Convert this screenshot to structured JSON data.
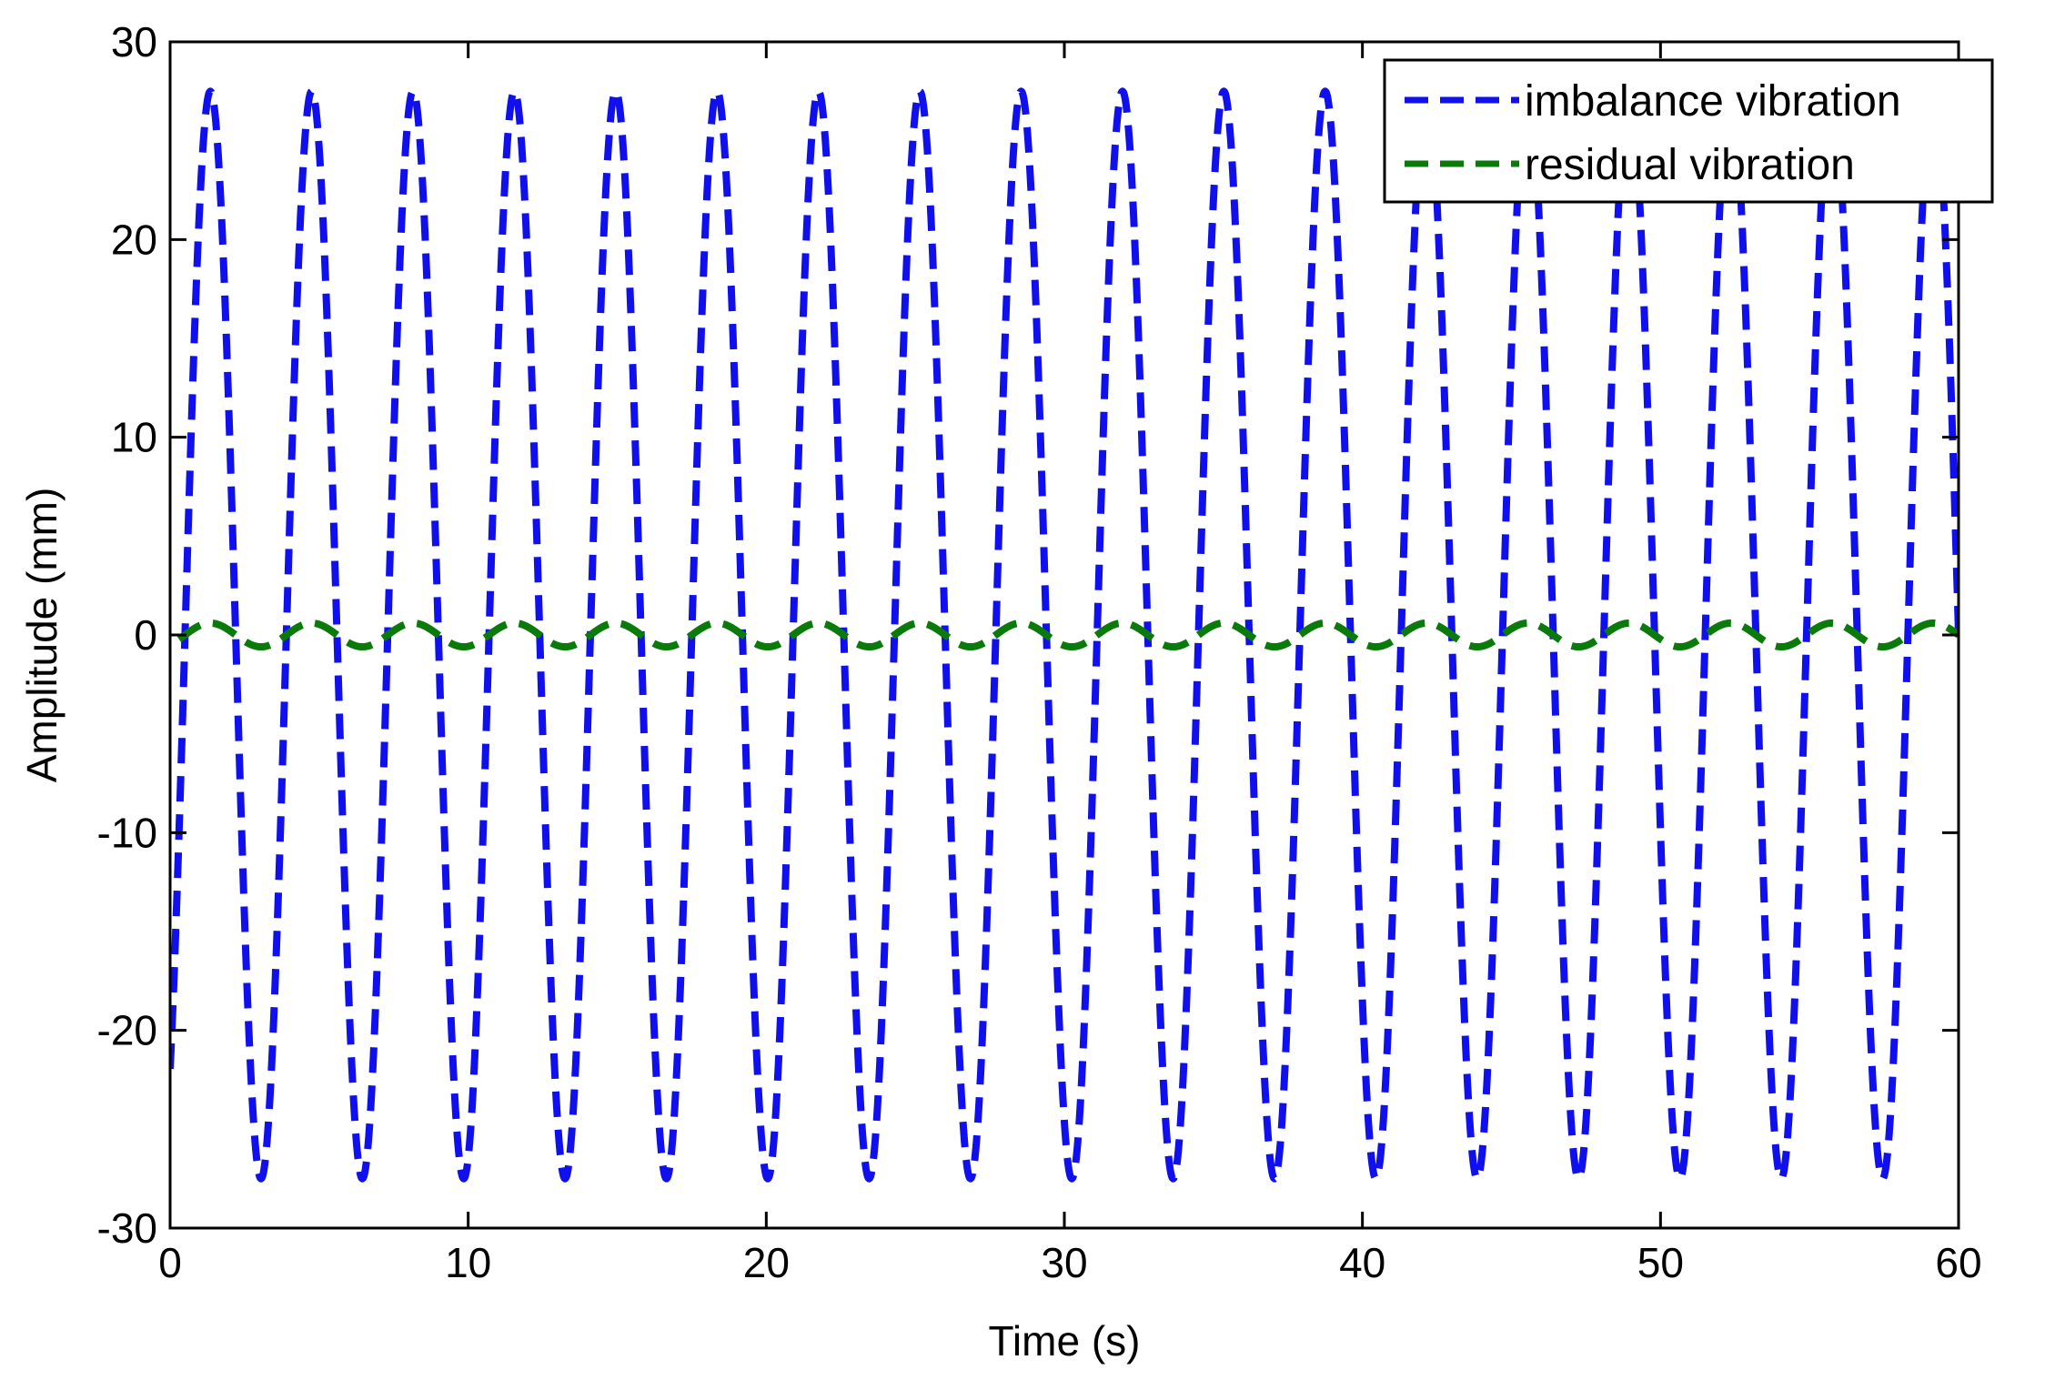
{
  "chart_data": {
    "type": "line",
    "title": "",
    "xlabel": "Time (s)",
    "ylabel": "Amplitude (mm)",
    "xlim": [
      0,
      60
    ],
    "ylim": [
      -30,
      30
    ],
    "xticks": [
      0,
      10,
      20,
      30,
      40,
      50,
      60
    ],
    "yticks": [
      -30,
      -20,
      -10,
      0,
      10,
      20,
      30
    ],
    "xtick_labels": [
      "0",
      "10",
      "20",
      "30",
      "40",
      "50",
      "60"
    ],
    "ytick_labels": [
      "-30",
      "-20",
      "-10",
      "0",
      "10",
      "20",
      "30"
    ],
    "grid": false,
    "legend_position": "top-right",
    "series": [
      {
        "name": "imbalance vibration",
        "color": "#1010ee",
        "line_style": "dashed",
        "function": "sine",
        "amplitude": 27.5,
        "period": 3.4,
        "phase_offset": 0.5,
        "x_start": 0,
        "x_end": 60
      },
      {
        "name": "residual vibration",
        "color": "#0a7a0a",
        "line_style": "dashed",
        "function": "sine",
        "amplitude": 0.6,
        "period": 3.4,
        "phase_offset": 0.5,
        "x_start": 0.3,
        "x_end": 60
      }
    ]
  }
}
